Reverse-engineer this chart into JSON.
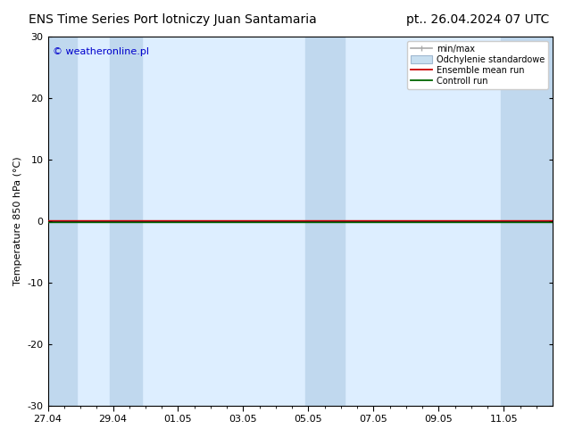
{
  "title_left": "ENS Time Series Port lotniczy Juan Santamaria",
  "title_right": "pt.. 26.04.2024 07 UTC",
  "ylabel": "Temperature 850 hPa (°C)",
  "watermark": "© weatheronline.pl",
  "watermark_color": "#0000cc",
  "ylim": [
    -30,
    30
  ],
  "yticks": [
    -30,
    -20,
    -10,
    0,
    10,
    20,
    30
  ],
  "xtick_labels": [
    "27.04",
    "29.04",
    "01.05",
    "03.05",
    "05.05",
    "07.05",
    "09.05",
    "11.05"
  ],
  "background_color": "#ffffff",
  "plot_bg_color": "#ddeeff",
  "shaded_bands_color": "#c0d8ee",
  "zero_line_color": "#000000",
  "control_run_color": "#006600",
  "ensemble_mean_color": "#cc0000",
  "legend_labels": [
    "min/max",
    "Odchylenie standardowe",
    "Ensemble mean run",
    "Controll run"
  ],
  "title_fontsize": 10,
  "tick_fontsize": 8,
  "ylabel_fontsize": 8,
  "watermark_fontsize": 8
}
